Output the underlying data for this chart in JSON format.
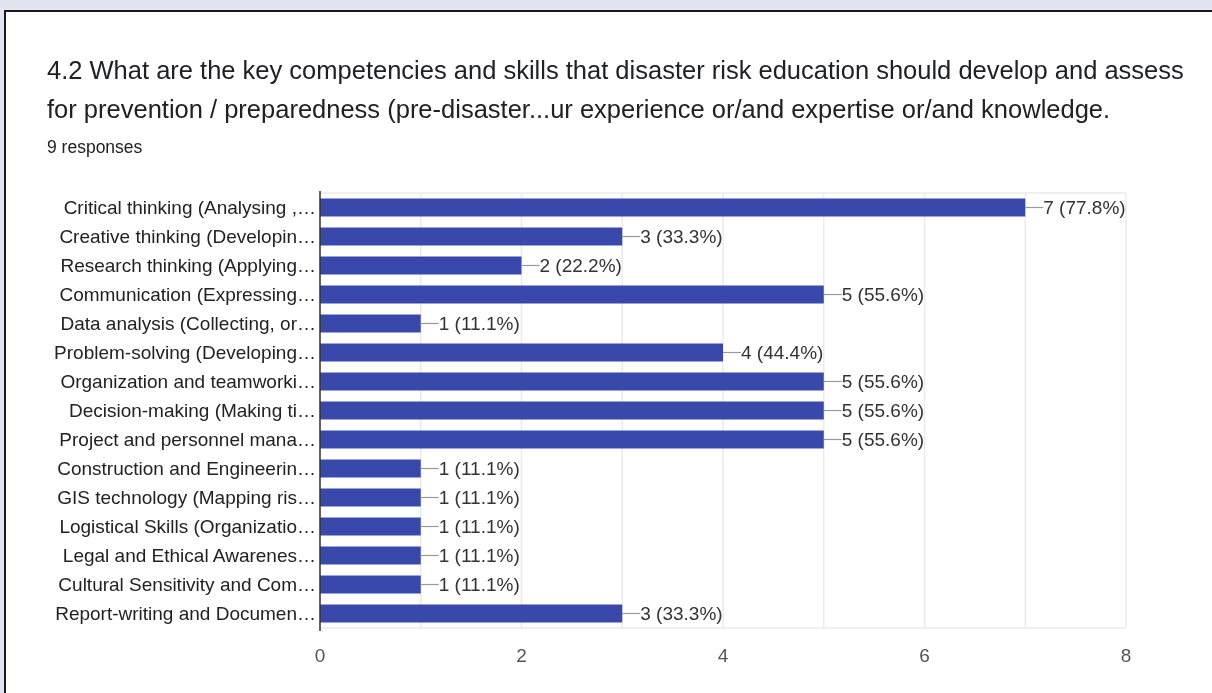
{
  "chart_data": {
    "type": "bar",
    "orientation": "horizontal",
    "title": "4.2 What are the key competencies and skills that disaster risk education should develop and assess for prevention / preparedness (pre-disaster...ur experience or/and expertise or/and knowledge.",
    "subtitle": "9 responses",
    "categories": [
      "Critical thinking (Analysing ,…",
      "Creative thinking (Developin…",
      "Research thinking (Applying…",
      "Communication (Expressing…",
      "Data analysis (Collecting, or…",
      "Problem-solving (Developing…",
      "Organization and teamworki…",
      "Decision-making (Making ti…",
      "Project and personnel mana…",
      "Construction and Engineerin…",
      "GIS technology (Mapping ris…",
      "Logistical Skills (Organizatio…",
      "Legal and Ethical Awarenes…",
      "Cultural Sensitivity and Com…",
      "Report-writing and Documen…"
    ],
    "values": [
      7,
      3,
      2,
      5,
      1,
      4,
      5,
      5,
      5,
      1,
      1,
      1,
      1,
      1,
      3
    ],
    "value_labels": [
      "7 (77.8%)",
      "3 (33.3%)",
      "2 (22.2%)",
      "5 (55.6%)",
      "1 (11.1%)",
      "4 (44.4%)",
      "5 (55.6%)",
      "5 (55.6%)",
      "5 (55.6%)",
      "1 (11.1%)",
      "1 (11.1%)",
      "1 (11.1%)",
      "1 (11.1%)",
      "1 (11.1%)",
      "3 (33.3%)"
    ],
    "color": "#3949ab",
    "xlim": [
      0,
      8
    ],
    "xticks": [
      0,
      {
        "value": 1,
        "label": null
      },
      2,
      {
        "value": 3,
        "label": null
      },
      4,
      {
        "value": 5,
        "label": null
      },
      6,
      {
        "value": 7,
        "label": null
      },
      8
    ],
    "grid": "x"
  }
}
